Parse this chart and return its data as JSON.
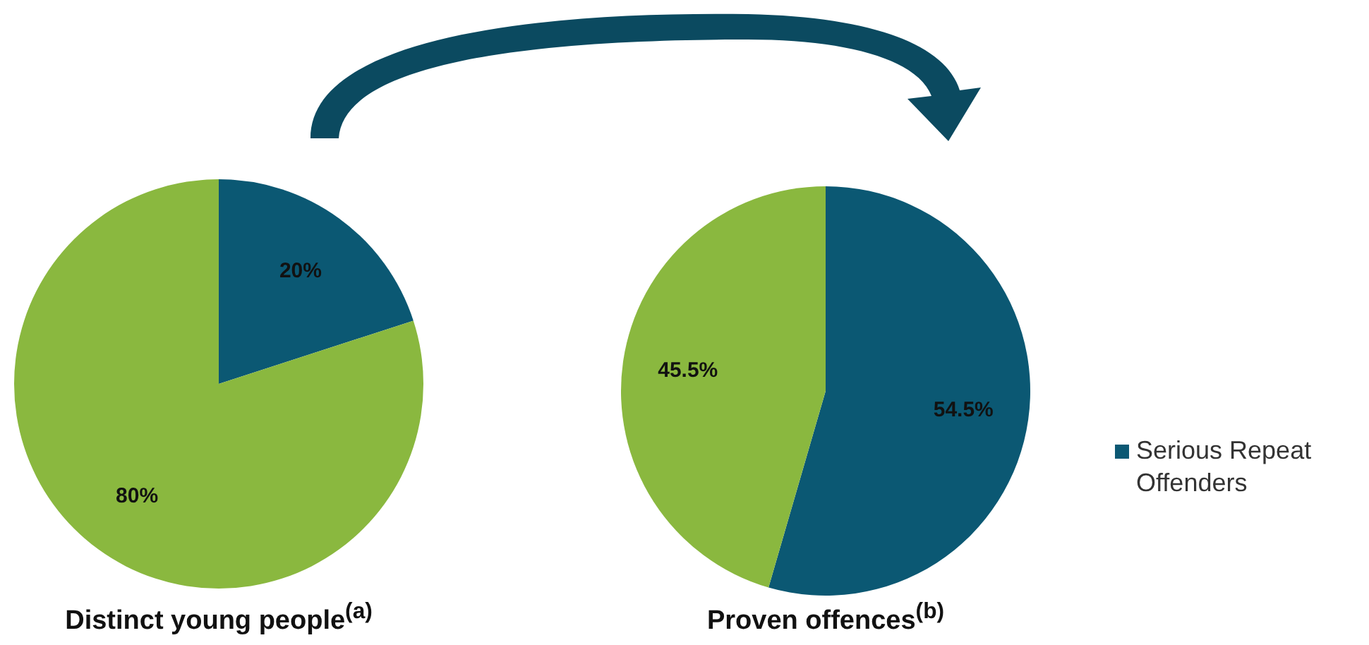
{
  "chart_data": [
    {
      "type": "pie",
      "title": "Distinct young people$^{(a)}$",
      "categories": [
        null,
        null
      ],
      "values": [
        20,
        80
      ],
      "colors": [
        "#0b5873",
        "#8ab83f"
      ],
      "value_labels": [
        "20%",
        "80%"
      ],
      "legend": false
    },
    {
      "type": "pie",
      "title": "Proven offences$^{(b)}$",
      "categories": [
        "Serious Repeat Offenders",
        null
      ],
      "values": [
        54.5,
        45.5
      ],
      "colors": [
        "#0b5873",
        "#8ab83f"
      ],
      "value_labels": [
        "54.5%",
        "45.5%"
      ],
      "legend": "right"
    }
  ]
}
